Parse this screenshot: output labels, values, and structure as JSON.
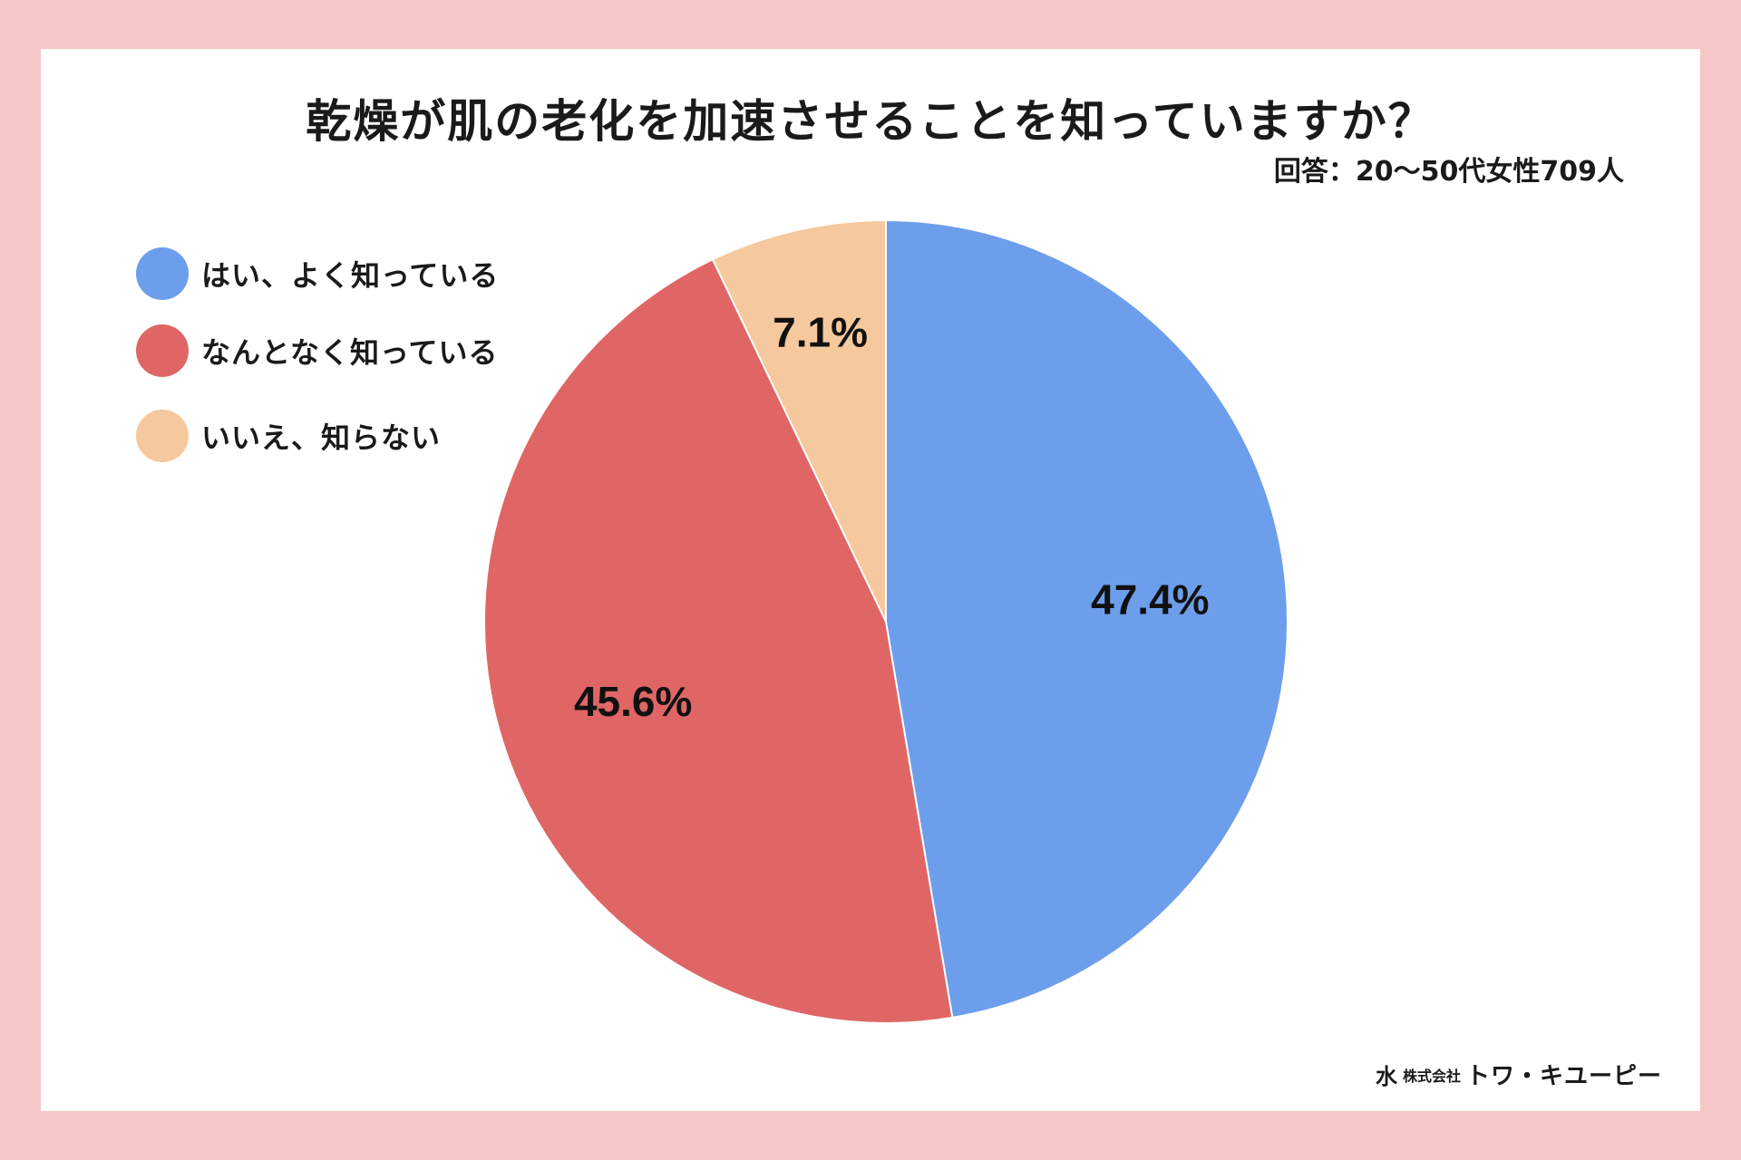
{
  "chart_data": {
    "type": "pie",
    "title": "乾燥が肌の老化を加速させることを知っていますか？",
    "subtitle": "回答：20〜50代女性709人",
    "slices": [
      {
        "label": "はい、よく知っている",
        "value": 47.4,
        "display": "47.4%",
        "color": "#6d9eeb"
      },
      {
        "label": "なんとなく知っている",
        "value": 45.6,
        "display": "45.6%",
        "color": "#e06666"
      },
      {
        "label": "いいえ、知らない",
        "value": 7.1,
        "display": "7.1%",
        "color": "#f6c89d"
      }
    ],
    "legend_position": "top-left"
  },
  "footer": {
    "logo_mark": "⽔",
    "company_prefix": "株式会社",
    "company_name": "トワ・キユーピー"
  }
}
